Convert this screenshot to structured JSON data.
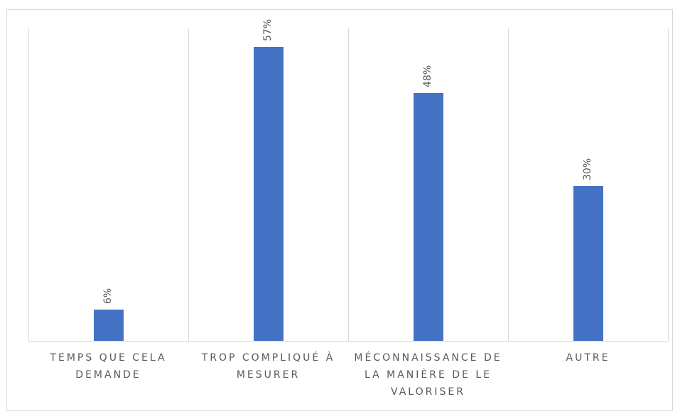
{
  "chart_data": {
    "type": "bar",
    "categories": [
      "TEMPS QUE CELA DEMANDE",
      "TROP COMPLIQUÉ À MESURER",
      "MÉCONNAISSANCE DE LA MANIÈRE DE LE VALORISER",
      "AUTRE"
    ],
    "values": [
      6,
      57,
      48,
      30
    ],
    "value_labels": [
      "6%",
      "57%",
      "48%",
      "30%"
    ],
    "color": "#4472c4",
    "ylim": [
      0,
      60
    ]
  }
}
